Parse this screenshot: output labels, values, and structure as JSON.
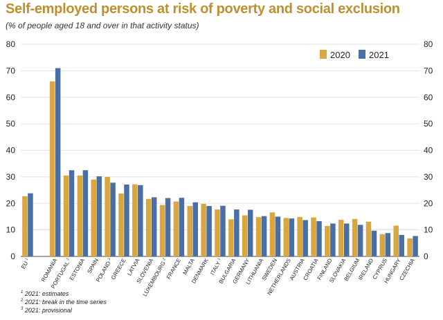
{
  "header": {
    "title": "Self-employed persons at risk of poverty and social exclusion",
    "subtitle": "(% of people aged 18 and over in that activity status)"
  },
  "colors": {
    "series_2020": "#d9a640",
    "series_2021": "#4a6fa5",
    "title": "#bf8f2f",
    "grid": "#d9d9d9"
  },
  "chart_data": {
    "type": "bar",
    "title": "Self-employed persons at risk of poverty and social exclusion",
    "subtitle": "(% of people aged 18 and over in that activity status)",
    "xlabel": "",
    "ylabel": "",
    "ylim": [
      0,
      80
    ],
    "yticks": [
      0,
      10,
      20,
      30,
      40,
      50,
      60,
      70,
      80
    ],
    "grid": true,
    "legend_position": "top-right",
    "categories": [
      "EU",
      "",
      "ROMANIA",
      "PORTUGAL",
      "ESTONIA",
      "SPAIN",
      "POLAND",
      "GREECE",
      "LATVIA",
      "SLOVENIA",
      "LUXEMBOURG",
      "FRANCE",
      "MALTA",
      "DENMARK",
      "ITALY",
      "BULGARIA",
      "GERMANY",
      "LITHUANIA",
      "SWEDEN",
      "NETHERLANDS",
      "AUSTRIA",
      "CROATIA",
      "FINLAND",
      "SLOVAKIA",
      "BELGIUM",
      "IRELAND",
      "CYPRUS",
      "HUNGARY",
      "CZECHIA"
    ],
    "category_notes": [
      "1",
      "",
      "",
      "2",
      "",
      "",
      "3",
      "",
      "",
      "",
      "2",
      "",
      "",
      "",
      "1",
      "",
      "",
      "",
      "",
      "",
      "",
      "",
      "",
      "",
      "",
      "",
      "",
      "",
      ""
    ],
    "series": [
      {
        "name": "2020",
        "values": [
          22.7,
          null,
          66,
          30.5,
          30.5,
          29,
          30,
          23.7,
          27.2,
          21.7,
          19.4,
          20.7,
          19,
          19.8,
          17.7,
          14,
          15.5,
          14.8,
          16.6,
          14.5,
          14.9,
          14.7,
          11.5,
          13.8,
          14.1,
          13.1,
          8.4,
          11.6,
          6.8
        ]
      },
      {
        "name": "2021",
        "values": [
          23.8,
          null,
          71,
          32.5,
          32.5,
          30.2,
          27.8,
          27.1,
          26.9,
          22.3,
          22,
          22.1,
          20.4,
          19,
          19.1,
          17.7,
          17.6,
          15.2,
          15,
          14.3,
          13.7,
          13.3,
          12.4,
          12.4,
          11.9,
          9.7,
          8.8,
          8.1,
          7.7
        ]
      }
    ]
  },
  "footnotes": [
    {
      "mark": "1",
      "text": "2021: estimates"
    },
    {
      "mark": "2",
      "text": "2021: break in the time series"
    },
    {
      "mark": "3",
      "text": "2021: provisional"
    }
  ]
}
